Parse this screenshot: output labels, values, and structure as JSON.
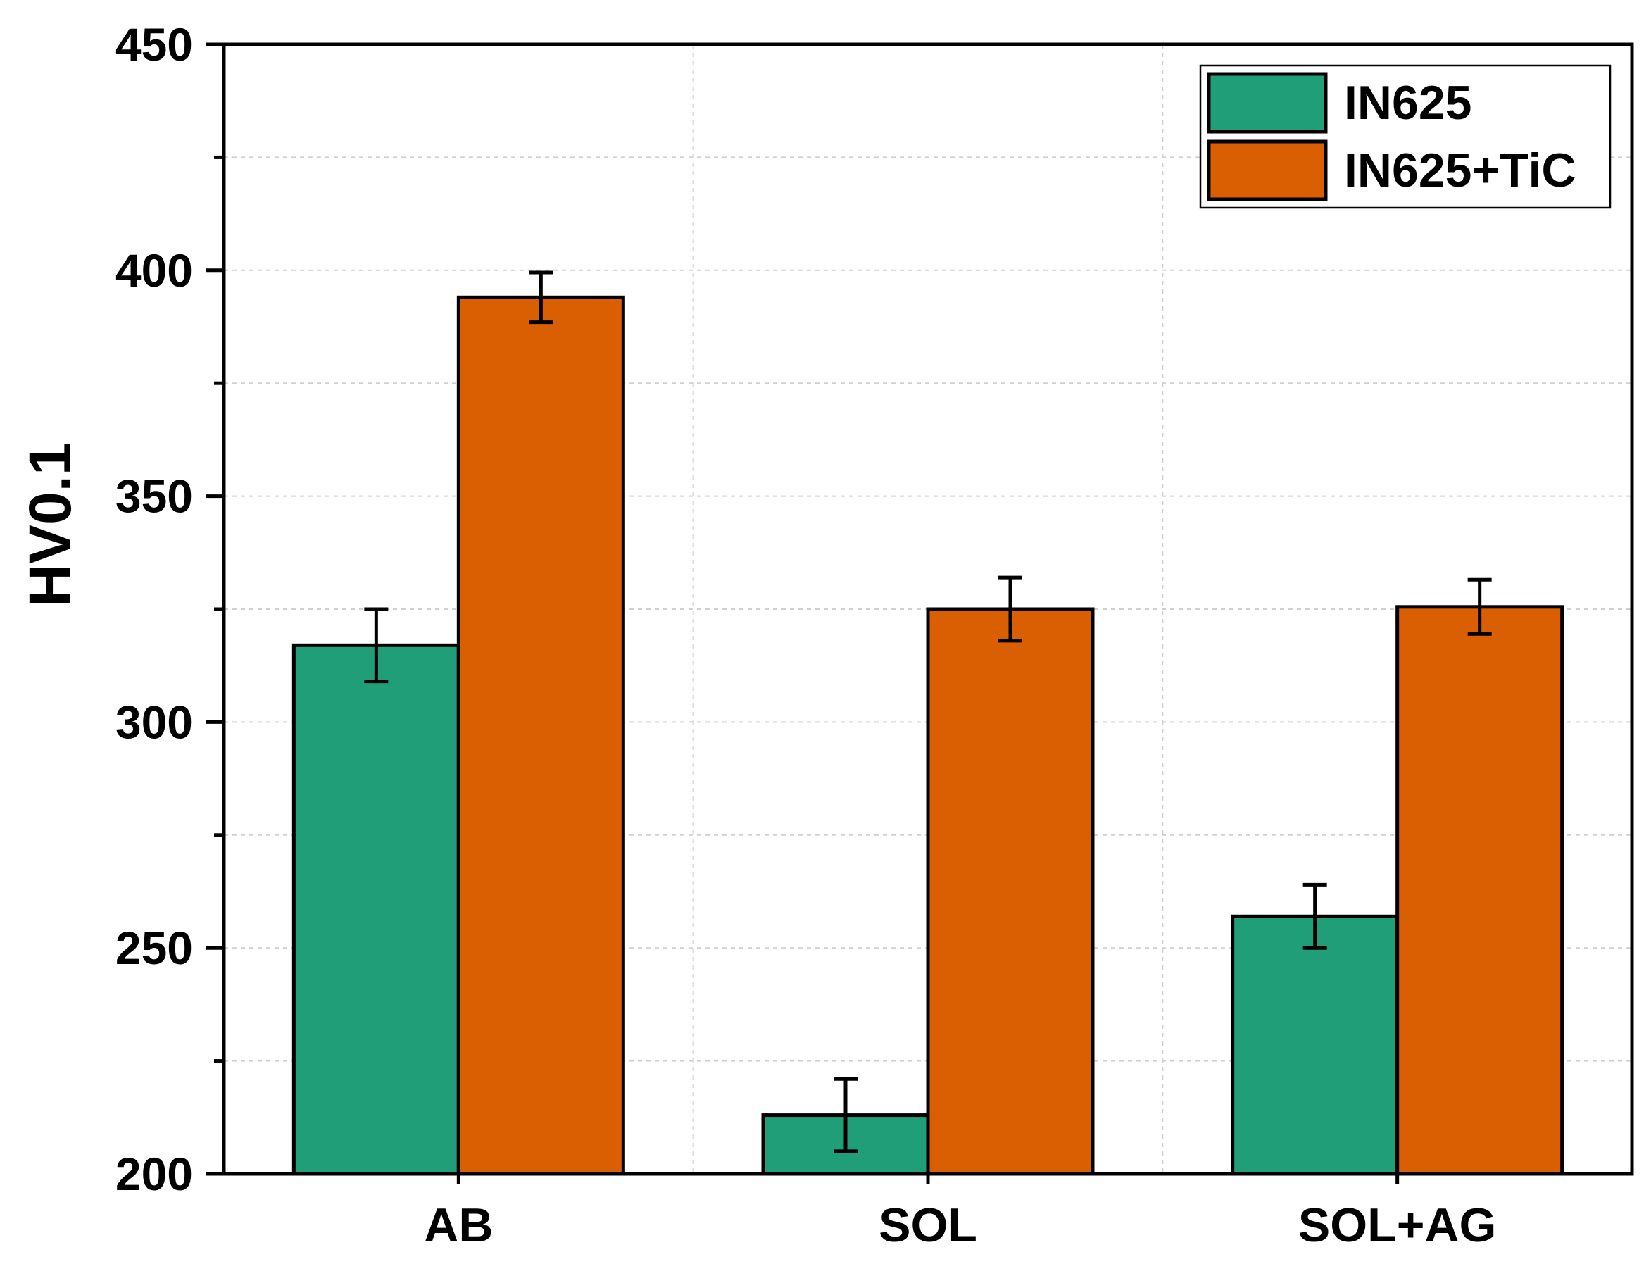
{
  "chart_data": {
    "type": "bar",
    "title": "",
    "xlabel": "",
    "ylabel": "HV0.1",
    "categories": [
      "AB",
      "SOL",
      "SOL+AG"
    ],
    "ylim": [
      200,
      450
    ],
    "yticks": [
      200,
      250,
      300,
      350,
      400,
      450
    ],
    "yticks_minor": [
      225,
      275,
      325,
      375,
      425
    ],
    "grid": true,
    "legend_position": "top-right",
    "series": [
      {
        "name": "IN625",
        "color": "#1f9e78",
        "values": [
          317,
          213,
          257
        ],
        "errors": [
          8,
          8,
          7
        ]
      },
      {
        "name": "IN625+TiC",
        "color": "#d95f02",
        "values": [
          394,
          325,
          325.5
        ],
        "errors": [
          5.5,
          7,
          6
        ]
      }
    ]
  }
}
